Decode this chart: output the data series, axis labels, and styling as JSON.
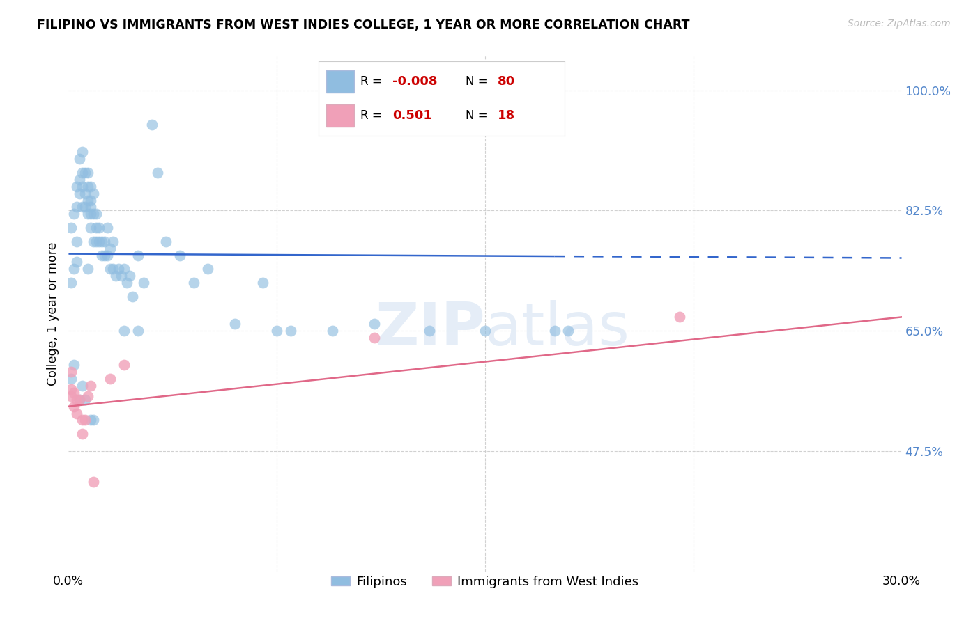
{
  "title": "FILIPINO VS IMMIGRANTS FROM WEST INDIES COLLEGE, 1 YEAR OR MORE CORRELATION CHART",
  "source": "Source: ZipAtlas.com",
  "ylabel": "College, 1 year or more",
  "ytick_labels": [
    "100.0%",
    "82.5%",
    "65.0%",
    "47.5%"
  ],
  "ytick_values": [
    1.0,
    0.825,
    0.65,
    0.475
  ],
  "xlim": [
    0.0,
    0.3
  ],
  "ylim": [
    0.3,
    1.05
  ],
  "legend_r_blue": "-0.008",
  "legend_n_blue": "80",
  "legend_r_pink": "0.501",
  "legend_n_pink": "18",
  "blue_scatter_color": "#90bde0",
  "pink_scatter_color": "#f0a0b8",
  "blue_line_color": "#3366cc",
  "pink_line_color": "#e06888",
  "grid_color": "#cccccc",
  "blue_line_solid_end": 0.175,
  "filipinos_x": [
    0.001,
    0.001,
    0.002,
    0.002,
    0.003,
    0.003,
    0.003,
    0.004,
    0.004,
    0.004,
    0.005,
    0.005,
    0.005,
    0.005,
    0.006,
    0.006,
    0.006,
    0.007,
    0.007,
    0.007,
    0.007,
    0.008,
    0.008,
    0.008,
    0.008,
    0.008,
    0.009,
    0.009,
    0.009,
    0.01,
    0.01,
    0.01,
    0.011,
    0.011,
    0.012,
    0.012,
    0.013,
    0.013,
    0.014,
    0.014,
    0.015,
    0.015,
    0.016,
    0.016,
    0.017,
    0.018,
    0.019,
    0.02,
    0.021,
    0.022,
    0.023,
    0.025,
    0.027,
    0.03,
    0.032,
    0.035,
    0.04,
    0.045,
    0.05,
    0.06,
    0.07,
    0.075,
    0.08,
    0.095,
    0.11,
    0.13,
    0.15,
    0.175,
    0.001,
    0.002,
    0.003,
    0.004,
    0.005,
    0.006,
    0.007,
    0.008,
    0.009,
    0.02,
    0.025,
    0.18
  ],
  "filipinos_y": [
    0.72,
    0.8,
    0.74,
    0.82,
    0.78,
    0.83,
    0.86,
    0.85,
    0.87,
    0.9,
    0.83,
    0.86,
    0.88,
    0.91,
    0.83,
    0.85,
    0.88,
    0.82,
    0.84,
    0.86,
    0.88,
    0.8,
    0.82,
    0.84,
    0.86,
    0.83,
    0.78,
    0.82,
    0.85,
    0.78,
    0.8,
    0.82,
    0.78,
    0.8,
    0.76,
    0.78,
    0.76,
    0.78,
    0.76,
    0.8,
    0.74,
    0.77,
    0.74,
    0.78,
    0.73,
    0.74,
    0.73,
    0.74,
    0.72,
    0.73,
    0.7,
    0.76,
    0.72,
    0.95,
    0.88,
    0.78,
    0.76,
    0.72,
    0.74,
    0.66,
    0.72,
    0.65,
    0.65,
    0.65,
    0.66,
    0.65,
    0.65,
    0.65,
    0.58,
    0.6,
    0.75,
    0.55,
    0.57,
    0.55,
    0.74,
    0.52,
    0.52,
    0.65,
    0.65,
    0.65
  ],
  "westindies_x": [
    0.001,
    0.001,
    0.002,
    0.002,
    0.003,
    0.003,
    0.004,
    0.005,
    0.005,
    0.006,
    0.007,
    0.008,
    0.009,
    0.015,
    0.02,
    0.11,
    0.22,
    0.001
  ],
  "westindies_y": [
    0.555,
    0.565,
    0.54,
    0.56,
    0.53,
    0.55,
    0.55,
    0.52,
    0.5,
    0.52,
    0.555,
    0.57,
    0.43,
    0.58,
    0.6,
    0.64,
    0.67,
    0.59
  ],
  "blue_line_y0": 0.762,
  "blue_line_y1": 0.756,
  "pink_line_y0": 0.54,
  "pink_line_y1": 0.67
}
